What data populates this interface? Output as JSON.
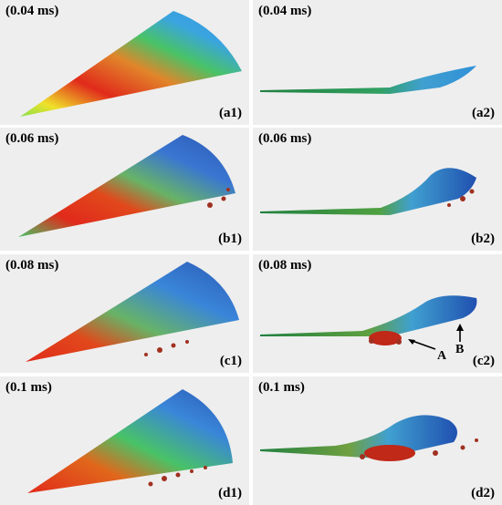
{
  "panels": [
    {
      "time": "(0.04 ms)",
      "tag": "(a1)"
    },
    {
      "time": "(0.04 ms)",
      "tag": "(a2)"
    },
    {
      "time": "(0.06 ms)",
      "tag": "(b1)"
    },
    {
      "time": "(0.06 ms)",
      "tag": "(b2)"
    },
    {
      "time": "(0.08 ms)",
      "tag": "(c1)"
    },
    {
      "time": "(0.08 ms)",
      "tag": "(c2)"
    },
    {
      "time": "(0.1 ms)",
      "tag": "(d1)"
    },
    {
      "time": "(0.1 ms)",
      "tag": "(d2)"
    }
  ],
  "annotations": {
    "a": "A",
    "b": "B"
  },
  "colors": {
    "background": "#eeeeee",
    "hot": "#e02010",
    "warm": "#f0c020",
    "mid": "#40c060",
    "cool": "#3090d8",
    "cold": "#2050b0",
    "droplet": "#a03020"
  }
}
